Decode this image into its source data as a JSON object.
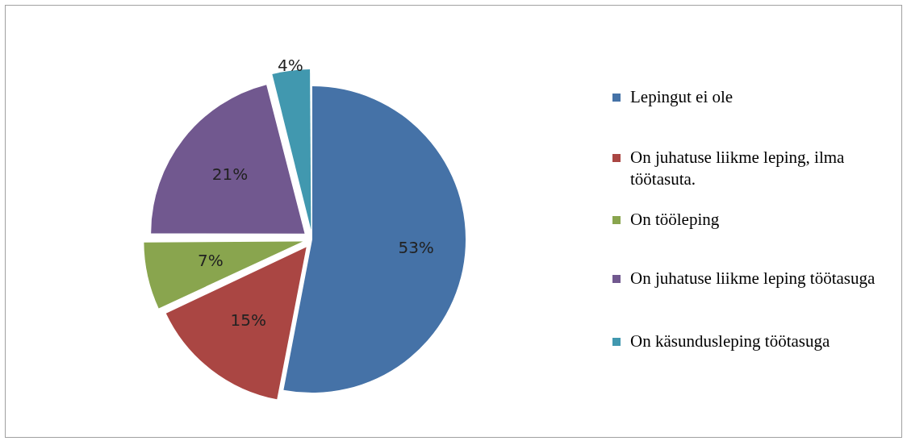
{
  "chart_data": {
    "type": "pie",
    "categories": [
      "Lepingut ei ole",
      "On juhatuse liikme leping, ilma töötasuta.",
      "On tööleping",
      "On juhatuse liikme leping töötasuga",
      "On käsundusleping töötasuga"
    ],
    "values": [
      53,
      15,
      7,
      21,
      4
    ],
    "colors": [
      "#4572a7",
      "#aa4643",
      "#89a54e",
      "#71588f",
      "#4198af"
    ],
    "value_labels": [
      "53%",
      "15%",
      "7%",
      "21%",
      "4%"
    ],
    "legend": "right"
  }
}
